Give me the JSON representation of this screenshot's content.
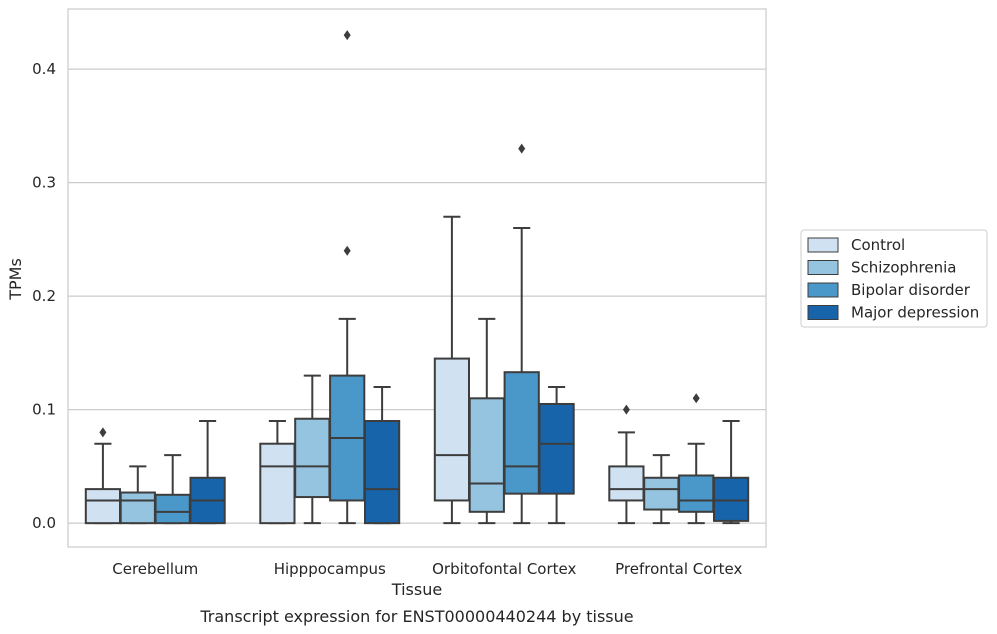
{
  "chart_data": {
    "type": "box",
    "title": "Transcript expression for ENST00000440244 by tissue",
    "xlabel": "Tissue",
    "ylabel": "TPMs",
    "ylim": [
      -0.021,
      0.453
    ],
    "yticks": [
      0.0,
      0.1,
      0.2,
      0.3,
      0.4
    ],
    "ytick_labels": [
      "0.0",
      "0.1",
      "0.2",
      "0.3",
      "0.4"
    ],
    "grid": "horizontal",
    "legend_position": "right",
    "categories": [
      "Cerebellum",
      "Hipppocampus",
      "Orbitofontal Cortex",
      "Prefrontal Cortex"
    ],
    "series": [
      {
        "name": "Control",
        "color": "#d0e1f2",
        "boxes": [
          {
            "whislo": 0.0,
            "q1": 0.0,
            "med": 0.02,
            "q3": 0.03,
            "whishi": 0.07,
            "fliers": [
              0.08
            ]
          },
          {
            "whislo": 0.0,
            "q1": 0.0,
            "med": 0.05,
            "q3": 0.07,
            "whishi": 0.09,
            "fliers": []
          },
          {
            "whislo": 0.0,
            "q1": 0.02,
            "med": 0.06,
            "q3": 0.145,
            "whishi": 0.27,
            "fliers": []
          },
          {
            "whislo": 0.0,
            "q1": 0.02,
            "med": 0.03,
            "q3": 0.05,
            "whishi": 0.08,
            "fliers": [
              0.1
            ]
          }
        ]
      },
      {
        "name": "Schizophrenia",
        "color": "#94c4df",
        "boxes": [
          {
            "whislo": 0.0,
            "q1": 0.0,
            "med": 0.02,
            "q3": 0.027,
            "whishi": 0.05,
            "fliers": []
          },
          {
            "whislo": 0.0,
            "q1": 0.023,
            "med": 0.05,
            "q3": 0.092,
            "whishi": 0.13,
            "fliers": []
          },
          {
            "whislo": 0.0,
            "q1": 0.01,
            "med": 0.035,
            "q3": 0.11,
            "whishi": 0.18,
            "fliers": []
          },
          {
            "whislo": 0.0,
            "q1": 0.012,
            "med": 0.03,
            "q3": 0.04,
            "whishi": 0.06,
            "fliers": []
          }
        ]
      },
      {
        "name": "Bipolar disorder",
        "color": "#4a98c9",
        "boxes": [
          {
            "whislo": 0.0,
            "q1": 0.0,
            "med": 0.01,
            "q3": 0.025,
            "whishi": 0.06,
            "fliers": []
          },
          {
            "whislo": 0.0,
            "q1": 0.02,
            "med": 0.075,
            "q3": 0.13,
            "whishi": 0.18,
            "fliers": [
              0.24,
              0.43
            ]
          },
          {
            "whislo": 0.0,
            "q1": 0.026,
            "med": 0.05,
            "q3": 0.133,
            "whishi": 0.26,
            "fliers": [
              0.33
            ]
          },
          {
            "whislo": 0.0,
            "q1": 0.01,
            "med": 0.02,
            "q3": 0.042,
            "whishi": 0.07,
            "fliers": [
              0.11
            ]
          }
        ]
      },
      {
        "name": "Major depression",
        "color": "#1764ab",
        "boxes": [
          {
            "whislo": 0.0,
            "q1": 0.0,
            "med": 0.02,
            "q3": 0.04,
            "whishi": 0.09,
            "fliers": []
          },
          {
            "whislo": 0.0,
            "q1": 0.0,
            "med": 0.03,
            "q3": 0.09,
            "whishi": 0.12,
            "fliers": []
          },
          {
            "whislo": 0.0,
            "q1": 0.026,
            "med": 0.07,
            "q3": 0.105,
            "whishi": 0.12,
            "fliers": []
          },
          {
            "whislo": 0.0,
            "q1": 0.002,
            "med": 0.02,
            "q3": 0.04,
            "whishi": 0.09,
            "fliers": []
          }
        ]
      }
    ]
  }
}
